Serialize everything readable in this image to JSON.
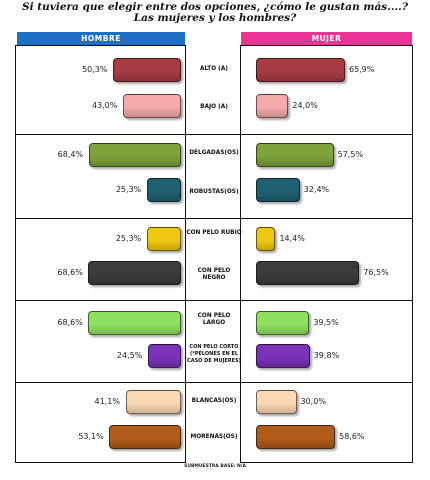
{
  "title_line1": "Si tuviera que elegir entre dos opciones, ¿cómo le gustan más....?",
  "title_line2": "Las mujeres y los hombres?",
  "footer": "Submuestra base: N/A",
  "colors": {
    "men_header": "#1f6fc5",
    "women_header": "#ea3596"
  },
  "chart_data": {
    "type": "bar",
    "orientation": "horizontal",
    "title": "Si tuviera que elegir entre dos opciones, ¿cómo le gustan más....? Las mujeres y los hombres?",
    "categories": [
      "Alto (a)",
      "Bajo (a)",
      "Delgadas(os)",
      "Robustas(os)",
      "Con pelo rubio",
      "Con pelo negro",
      "Con pelo largo",
      "Con pelo corto (*pelones en el caso de mujeres)",
      "Blancas(os)",
      "Morenas(os)"
    ],
    "series": [
      {
        "name": "Hombre",
        "values": [
          50.3,
          43.0,
          68.4,
          25.3,
          25.3,
          68.6,
          68.6,
          24.5,
          41.1,
          53.1
        ],
        "labels": [
          "50,3%",
          "43,0%",
          "68,4%",
          "25,3%",
          "25,3%",
          "68,6%",
          "68,6%",
          "24,5%",
          "41,1%",
          "53,1%"
        ]
      },
      {
        "name": "Mujer",
        "values": [
          65.9,
          24.0,
          57.5,
          32.4,
          14.4,
          76.5,
          39.5,
          39.8,
          30.0,
          58.6
        ],
        "labels": [
          "65,9%",
          "24,0%",
          "57,5%",
          "32,4%",
          "14,4%",
          "76,5%",
          "39,5%",
          "39,8%",
          "30,0%",
          "58,6%"
        ]
      }
    ],
    "bar_colors": [
      "#a83c43",
      "#f4aaa9",
      "#7fa23c",
      "#1f6170",
      "#f0c710",
      "#3c3c3c",
      "#8ee060",
      "#7a33b8",
      "#fad8b4",
      "#b05c1a"
    ],
    "groups": 5,
    "xlim": [
      0,
      100
    ],
    "grid": false
  }
}
